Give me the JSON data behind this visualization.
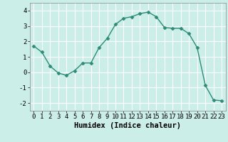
{
  "x": [
    0,
    1,
    2,
    3,
    4,
    5,
    6,
    7,
    8,
    9,
    10,
    11,
    12,
    13,
    14,
    15,
    16,
    17,
    18,
    19,
    20,
    21,
    22,
    23
  ],
  "y": [
    1.7,
    1.3,
    0.4,
    -0.05,
    -0.2,
    0.1,
    0.6,
    0.6,
    1.6,
    2.2,
    3.1,
    3.5,
    3.6,
    3.8,
    3.9,
    3.6,
    2.9,
    2.85,
    2.85,
    2.5,
    1.6,
    -0.85,
    -1.8,
    -1.85
  ],
  "line_color": "#2d8b77",
  "marker": "D",
  "markersize": 2.5,
  "linewidth": 1.0,
  "xlabel": "Humidex (Indice chaleur)",
  "xlim": [
    -0.5,
    23.5
  ],
  "ylim": [
    -2.5,
    4.5
  ],
  "yticks": [
    -2,
    -1,
    0,
    1,
    2,
    3,
    4
  ],
  "xticks": [
    0,
    1,
    2,
    3,
    4,
    5,
    6,
    7,
    8,
    9,
    10,
    11,
    12,
    13,
    14,
    15,
    16,
    17,
    18,
    19,
    20,
    21,
    22,
    23
  ],
  "bg_color": "#cceee8",
  "grid_color": "#ffffff",
  "xlabel_fontsize": 7.5,
  "tick_fontsize": 6.5,
  "xlabel_fontweight": "bold"
}
